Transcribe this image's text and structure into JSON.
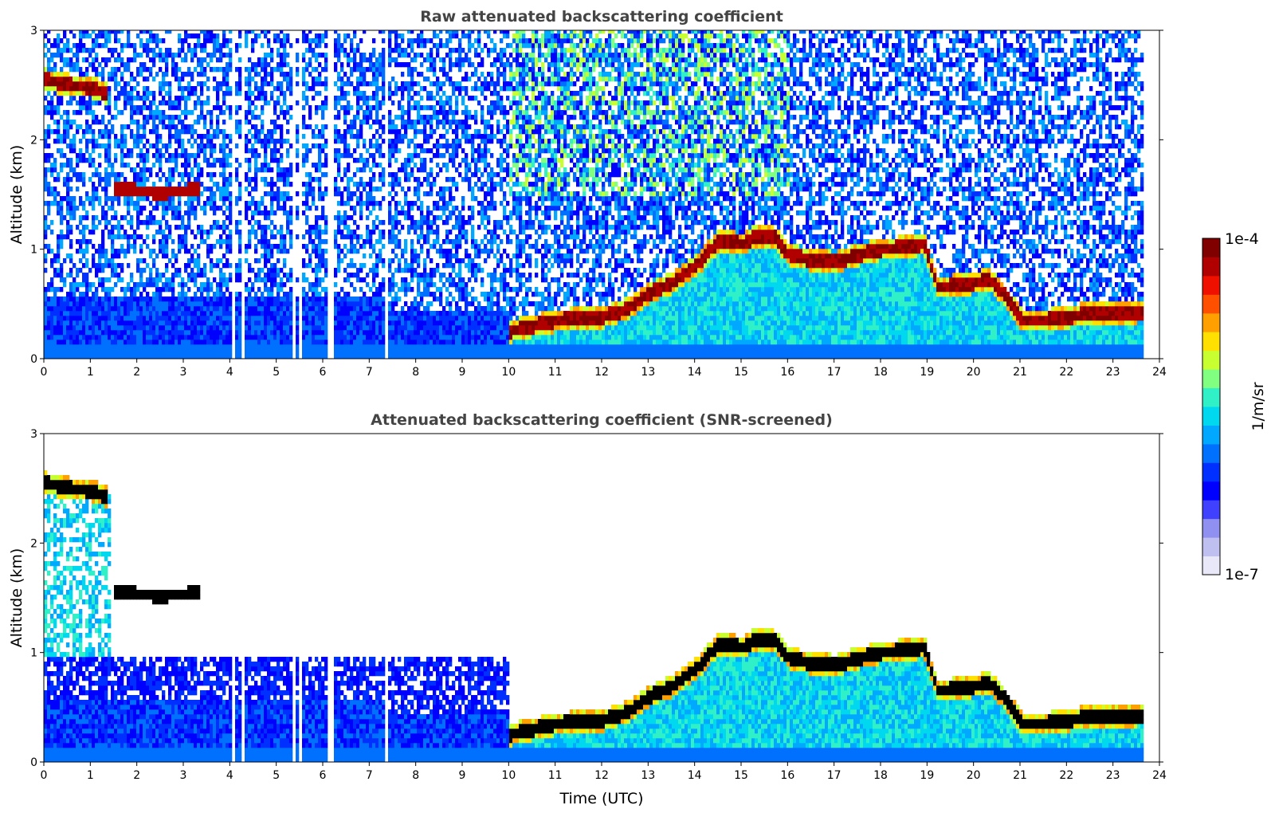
{
  "chart_data": [
    {
      "type": "heatmap",
      "title": "Raw attenuated backscattering coefficient",
      "xlabel": "",
      "ylabel": "Altitude (km)",
      "xlim": [
        0,
        24
      ],
      "ylim": [
        0,
        3
      ],
      "x_ticks": [
        "0",
        "1",
        "2",
        "3",
        "4",
        "5",
        "6",
        "7",
        "8",
        "9",
        "10",
        "11",
        "12",
        "13",
        "14",
        "15",
        "16",
        "17",
        "18",
        "19",
        "20",
        "21",
        "22",
        "23",
        "24"
      ],
      "y_ticks": [
        "0",
        "1",
        "2",
        "3"
      ],
      "data_end_hour": 23.6,
      "gap_hours": [
        4.05,
        4.25,
        5.35,
        5.5,
        6.1,
        6.2,
        7.35
      ],
      "cloud_layer": {
        "description": "peak backscatter layer (km)",
        "x": [
          0,
          0.5,
          1.0,
          1.35,
          10.0,
          10.5,
          11.0,
          12.0,
          12.5,
          13.0,
          13.5,
          14.0,
          14.5,
          15.0,
          15.3,
          15.7,
          16.0,
          16.5,
          17.0,
          17.5,
          18.0,
          18.5,
          18.9,
          19.2,
          19.8,
          20.3,
          20.6,
          21.0,
          21.5,
          22.0,
          22.5,
          23.0,
          23.6
        ],
        "y": [
          2.55,
          2.5,
          2.48,
          2.42,
          0.25,
          0.3,
          0.35,
          0.38,
          0.45,
          0.6,
          0.7,
          0.85,
          1.08,
          1.05,
          1.12,
          1.1,
          0.95,
          0.9,
          0.88,
          0.95,
          1.0,
          1.02,
          1.05,
          0.65,
          0.68,
          0.72,
          0.6,
          0.35,
          0.35,
          0.38,
          0.42,
          0.42,
          0.43
        ]
      },
      "secondary_cloud": {
        "x": [
          1.5,
          2.4,
          3.0,
          3.3
        ],
        "y": [
          1.55,
          1.52,
          1.53,
          1.55
        ]
      },
      "noisy_region": true,
      "screened": false
    },
    {
      "type": "heatmap",
      "title": "Attenuated backscattering coefficient (SNR-screened)",
      "xlabel": "Time (UTC)",
      "ylabel": "Altitude (km)",
      "xlim": [
        0,
        24
      ],
      "ylim": [
        0,
        3
      ],
      "x_ticks": [
        "0",
        "1",
        "2",
        "3",
        "4",
        "5",
        "6",
        "7",
        "8",
        "9",
        "10",
        "11",
        "12",
        "13",
        "14",
        "15",
        "16",
        "17",
        "18",
        "19",
        "20",
        "21",
        "22",
        "23",
        "24"
      ],
      "y_ticks": [
        "0",
        "1",
        "2",
        "3"
      ],
      "data_end_hour": 23.6,
      "gap_hours": [
        4.05,
        4.25,
        5.35,
        5.5,
        6.1,
        6.2,
        7.35
      ],
      "cloud_layer": {
        "description": "peak backscatter layer (km)",
        "x": [
          0,
          0.5,
          1.0,
          1.35,
          10.0,
          10.5,
          11.0,
          12.0,
          12.5,
          13.0,
          13.5,
          14.0,
          14.5,
          15.0,
          15.3,
          15.7,
          16.0,
          16.5,
          17.0,
          17.5,
          18.0,
          18.5,
          18.9,
          19.2,
          19.8,
          20.3,
          20.6,
          21.0,
          21.5,
          22.0,
          22.5,
          23.0,
          23.6
        ],
        "y": [
          2.55,
          2.5,
          2.48,
          2.42,
          0.25,
          0.3,
          0.35,
          0.38,
          0.45,
          0.6,
          0.7,
          0.85,
          1.08,
          1.05,
          1.12,
          1.1,
          0.95,
          0.9,
          0.88,
          0.95,
          1.0,
          1.02,
          1.05,
          0.65,
          0.68,
          0.72,
          0.6,
          0.35,
          0.35,
          0.38,
          0.42,
          0.42,
          0.43
        ]
      },
      "secondary_cloud": {
        "x": [
          1.5,
          2.4,
          3.0,
          3.3
        ],
        "y": [
          1.55,
          1.52,
          1.53,
          1.55
        ]
      },
      "noisy_region": false,
      "screened": true
    }
  ],
  "colorbar": {
    "max_label": "1e-4",
    "min_label": "1e-7",
    "unit_label": "1/m/sr",
    "colors": [
      "#e8e8f8",
      "#c0c0f0",
      "#9090f0",
      "#4040ff",
      "#0000ff",
      "#0030ff",
      "#0070ff",
      "#00a8ff",
      "#00d8f0",
      "#30f0c8",
      "#80ff80",
      "#c8ff30",
      "#ffe000",
      "#ffa000",
      "#ff5000",
      "#f01000",
      "#b00000",
      "#800000"
    ]
  }
}
